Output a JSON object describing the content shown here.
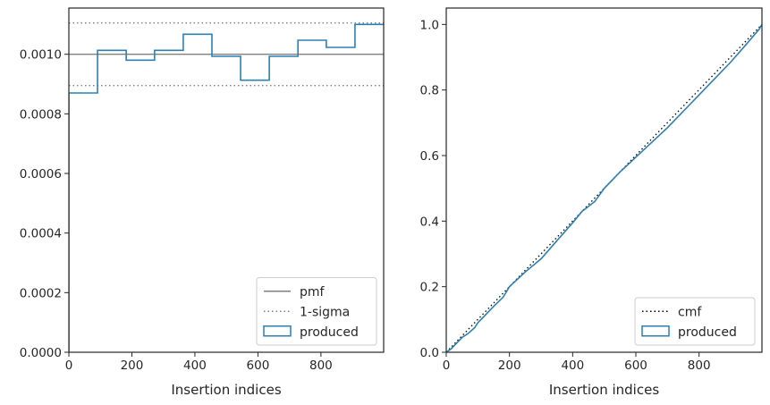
{
  "chart_data": [
    {
      "type": "line",
      "xlabel": "Insertion indices",
      "ylabel": "",
      "xlim": [
        0,
        999
      ],
      "ylim": [
        0,
        0.001155
      ],
      "xticks": [
        0,
        200,
        400,
        600,
        800
      ],
      "xtick_labels": [
        "0",
        "200",
        "400",
        "600",
        "800"
      ],
      "yticks": [
        0,
        0.0002,
        0.0004,
        0.0006,
        0.0008,
        0.001
      ],
      "ytick_labels": [
        "0.0000",
        "0.0002",
        "0.0004",
        "0.0006",
        "0.0008",
        "0.0010"
      ],
      "legend_position": "lower right",
      "series": [
        {
          "name": "pmf",
          "style": "solid",
          "color": "#808080",
          "x": [
            0,
            999
          ],
          "y": [
            0.001,
            0.001
          ]
        },
        {
          "name": "1-sigma",
          "style": "dotted",
          "color": "#808080",
          "x": [
            0,
            999
          ],
          "y": [
            0.001105,
            0.001105
          ]
        },
        {
          "name": "1-sigma",
          "style": "dotted",
          "color": "#808080",
          "x": [
            0,
            999
          ],
          "y": [
            0.000895,
            0.000895
          ]
        },
        {
          "name": "produced",
          "style": "step",
          "color": "#2c80b4",
          "bin_edges": [
            0,
            91,
            182,
            272,
            363,
            454,
            545,
            636,
            727,
            817,
            908,
            999
          ],
          "values": [
            0.00087,
            0.001013,
            0.00098,
            0.001013,
            0.001067,
            0.000993,
            0.000913,
            0.000993,
            0.001047,
            0.001023,
            0.0011
          ]
        }
      ],
      "legend": [
        {
          "label": "pmf",
          "kind": "line-solid",
          "color": "#808080"
        },
        {
          "label": "1-sigma",
          "kind": "line-dotted",
          "color": "#808080"
        },
        {
          "label": "produced",
          "kind": "patch",
          "color": "#2c80b4"
        }
      ]
    },
    {
      "type": "line",
      "xlabel": "Insertion indices",
      "ylabel": "",
      "xlim": [
        0,
        999
      ],
      "ylim": [
        0,
        1.05
      ],
      "xticks": [
        0,
        200,
        400,
        600,
        800
      ],
      "xtick_labels": [
        "0",
        "200",
        "400",
        "600",
        "800"
      ],
      "yticks": [
        0,
        0.2,
        0.4,
        0.6,
        0.8,
        1.0
      ],
      "ytick_labels": [
        "0.0",
        "0.2",
        "0.4",
        "0.6",
        "0.8",
        "1.0"
      ],
      "legend_position": "lower right",
      "series": [
        {
          "name": "cmf",
          "style": "dotted",
          "color": "#000000",
          "x": [
            0,
            999
          ],
          "y": [
            0,
            1
          ]
        },
        {
          "name": "produced",
          "style": "solid",
          "color": "#2c80b4",
          "x": [
            0,
            15,
            30,
            50,
            70,
            90,
            100,
            120,
            150,
            180,
            200,
            250,
            300,
            350,
            400,
            430,
            470,
            500,
            550,
            600,
            650,
            700,
            750,
            800,
            850,
            900,
            950,
            990,
            999
          ],
          "y": [
            0,
            0.01,
            0.025,
            0.045,
            0.058,
            0.075,
            0.09,
            0.11,
            0.14,
            0.168,
            0.2,
            0.245,
            0.285,
            0.34,
            0.395,
            0.43,
            0.46,
            0.5,
            0.55,
            0.595,
            0.64,
            0.685,
            0.735,
            0.785,
            0.835,
            0.885,
            0.94,
            0.985,
            1.0
          ]
        }
      ],
      "legend": [
        {
          "label": "cmf",
          "kind": "line-dotted",
          "color": "#000000"
        },
        {
          "label": "produced",
          "kind": "patch",
          "color": "#2c80b4"
        }
      ]
    }
  ]
}
